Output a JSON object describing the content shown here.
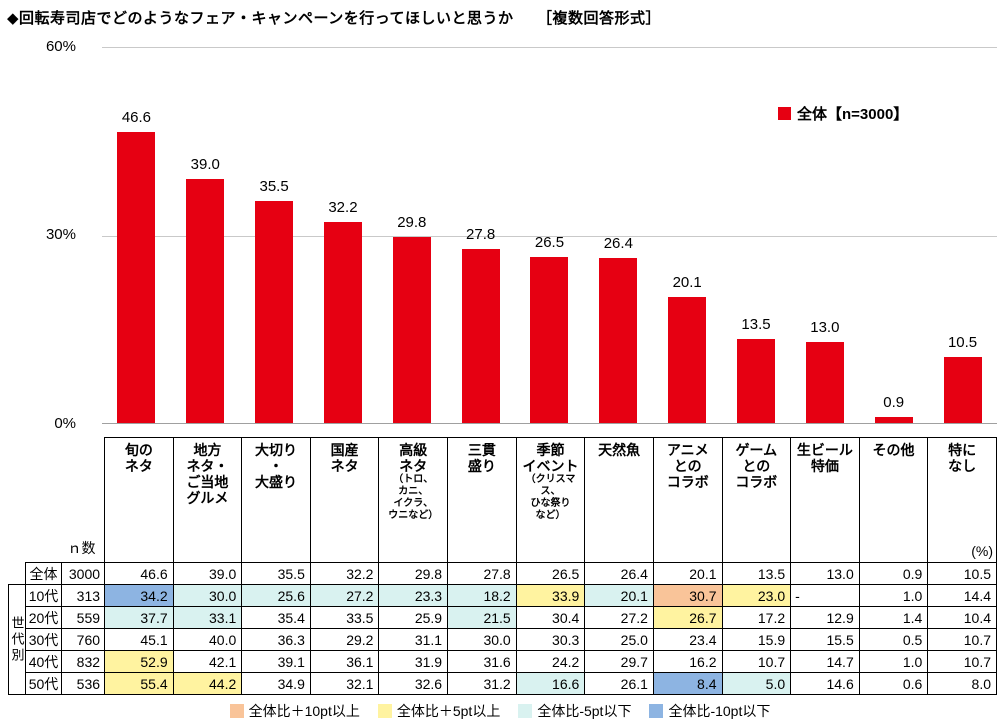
{
  "title": "◆回転寿司店でどのようなフェア・キャンペーンを行ってほしいと思うか　　［複数回答形式］",
  "chart_data": {
    "type": "bar",
    "title": "回転寿司店でどのようなフェア・キャンペーンを行ってほしいと思うか（複数回答形式）",
    "series_name": "全体【n=3000】",
    "categories": [
      "旬のネタ",
      "地方ネタ・ご当地グルメ",
      "大切り・大盛り",
      "国産ネタ",
      "高級ネタ（トロ、カニ、イクラ、ウニなど）",
      "三貫盛り",
      "季節イベント（クリスマス、ひな祭りなど）",
      "天然魚",
      "アニメとのコラボ",
      "ゲームとのコラボ",
      "生ビール特価",
      "その他",
      "特になし"
    ],
    "values": [
      46.6,
      39.0,
      35.5,
      32.2,
      29.8,
      27.8,
      26.5,
      26.4,
      20.1,
      13.5,
      13.0,
      0.9,
      10.5
    ],
    "ylim": [
      0,
      60
    ],
    "y_tick_labels": [
      "60%",
      "30%",
      "0%"
    ],
    "unit": "%",
    "bar_color": "#e60012",
    "grid": true,
    "legend_position": "top-right"
  },
  "table": {
    "n_header": "ｎ数",
    "unit_label": "(%)",
    "group_label": "世代別",
    "columns": [
      {
        "lines": [
          "旬の",
          "ネタ"
        ]
      },
      {
        "lines": [
          "地方",
          "ネタ・",
          "ご当地",
          "グルメ"
        ]
      },
      {
        "lines": [
          "大切り",
          "・",
          "大盛り"
        ]
      },
      {
        "lines": [
          "国産",
          "ネタ"
        ]
      },
      {
        "lines": [
          "高級",
          "ネタ"
        ],
        "small": [
          "（トロ、",
          "カニ、",
          "イクラ、",
          "ウニなど）"
        ]
      },
      {
        "lines": [
          "三貫",
          "盛り"
        ]
      },
      {
        "lines": [
          "季節",
          "イベント"
        ],
        "small": [
          "（クリスマ",
          "ス、",
          "ひな祭り",
          "など）"
        ]
      },
      {
        "lines": [
          "天然魚"
        ]
      },
      {
        "lines": [
          "アニメ",
          "との",
          "コラボ"
        ]
      },
      {
        "lines": [
          "ゲーム",
          "との",
          "コラボ"
        ]
      },
      {
        "lines": [
          "生ビール",
          "特価"
        ]
      },
      {
        "lines": [
          "その他"
        ]
      },
      {
        "lines": [
          "特に",
          "なし"
        ]
      }
    ],
    "rows": [
      {
        "label": "全体",
        "n": "3000",
        "values": [
          "46.6",
          "39.0",
          "35.5",
          "32.2",
          "29.8",
          "27.8",
          "26.5",
          "26.4",
          "20.1",
          "13.5",
          "13.0",
          "0.9",
          "10.5"
        ],
        "marks": [
          "",
          "",
          "",
          "",
          "",
          "",
          "",
          "",
          "",
          "",
          "",
          "",
          ""
        ]
      },
      {
        "label": "10代",
        "n": "313",
        "values": [
          "34.2",
          "30.0",
          "25.6",
          "27.2",
          "23.3",
          "18.2",
          "33.9",
          "20.1",
          "30.7",
          "23.0",
          "-",
          "1.0",
          "14.4"
        ],
        "marks": [
          "m10",
          "m5",
          "m5",
          "m5",
          "m5",
          "m5",
          "p5",
          "m5",
          "p10",
          "p5",
          "",
          "",
          ""
        ]
      },
      {
        "label": "20代",
        "n": "559",
        "values": [
          "37.7",
          "33.1",
          "35.4",
          "33.5",
          "25.9",
          "21.5",
          "30.4",
          "27.2",
          "26.7",
          "17.2",
          "12.9",
          "1.4",
          "10.4"
        ],
        "marks": [
          "m5",
          "m5",
          "",
          "",
          "",
          "m5",
          "",
          "",
          "p5",
          "",
          "",
          "",
          ""
        ]
      },
      {
        "label": "30代",
        "n": "760",
        "values": [
          "45.1",
          "40.0",
          "36.3",
          "29.2",
          "31.1",
          "30.0",
          "30.3",
          "25.0",
          "23.4",
          "15.9",
          "15.5",
          "0.5",
          "10.7"
        ],
        "marks": [
          "",
          "",
          "",
          "",
          "",
          "",
          "",
          "",
          "",
          "",
          "",
          "",
          ""
        ]
      },
      {
        "label": "40代",
        "n": "832",
        "values": [
          "52.9",
          "42.1",
          "39.1",
          "36.1",
          "31.9",
          "31.6",
          "24.2",
          "29.7",
          "16.2",
          "10.7",
          "14.7",
          "1.0",
          "10.7"
        ],
        "marks": [
          "p5",
          "",
          "",
          "",
          "",
          "",
          "",
          "",
          "",
          "",
          "",
          "",
          ""
        ]
      },
      {
        "label": "50代",
        "n": "536",
        "values": [
          "55.4",
          "44.2",
          "34.9",
          "32.1",
          "32.6",
          "31.2",
          "16.6",
          "26.1",
          "8.4",
          "5.0",
          "14.6",
          "0.6",
          "8.0"
        ],
        "marks": [
          "p5",
          "p5",
          "",
          "",
          "",
          "",
          "m5",
          "",
          "m10",
          "m5",
          "",
          "",
          ""
        ]
      }
    ]
  },
  "color_legend": {
    "items": [
      {
        "key": "p10",
        "label": "全体比＋10pt以上",
        "color": "#f9c499"
      },
      {
        "key": "p5",
        "label": "全体比＋5pt以上",
        "color": "#fff3a0"
      },
      {
        "key": "m5",
        "label": "全体比-5pt以下",
        "color": "#d9f2f0"
      },
      {
        "key": "m10",
        "label": "全体比-10pt以下",
        "color": "#8db4e2"
      }
    ]
  }
}
